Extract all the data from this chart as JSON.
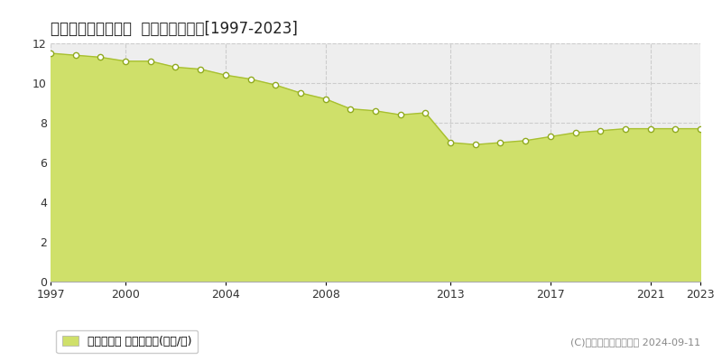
{
  "title": "双葉郡広野町中央台  基準地価格推移[1997-2023]",
  "years": [
    1997,
    1998,
    1999,
    2000,
    2001,
    2002,
    2003,
    2004,
    2005,
    2006,
    2007,
    2008,
    2009,
    2010,
    2011,
    2012,
    2013,
    2014,
    2015,
    2016,
    2017,
    2018,
    2019,
    2020,
    2021,
    2022,
    2023
  ],
  "values": [
    11.5,
    11.4,
    11.3,
    11.1,
    11.1,
    10.8,
    10.7,
    10.4,
    10.2,
    9.9,
    9.5,
    9.2,
    8.7,
    8.6,
    8.4,
    8.5,
    7.0,
    6.9,
    7.0,
    7.1,
    7.3,
    7.5,
    7.6,
    7.7,
    7.7,
    7.7,
    7.7
  ],
  "fill_color": "#cfe06a",
  "line_color": "#a8c030",
  "marker_facecolor": "#ffffff",
  "marker_edgecolor": "#90aa20",
  "bg_color": "#ffffff",
  "plot_bg_color": "#eeeeee",
  "grid_h_color": "#cccccc",
  "grid_v_color": "#cccccc",
  "ylim": [
    0,
    12
  ],
  "yticks": [
    0,
    2,
    4,
    6,
    8,
    10,
    12
  ],
  "xtick_labels": [
    1997,
    2000,
    2004,
    2008,
    2013,
    2017,
    2021,
    2023
  ],
  "legend_label": "基準地価格 平均坪単価(万円/坪)",
  "copyright_text": "(C)土地価格ドットコム 2024-09-11",
  "title_fontsize": 12,
  "tick_fontsize": 9,
  "legend_fontsize": 9,
  "copyright_fontsize": 8
}
